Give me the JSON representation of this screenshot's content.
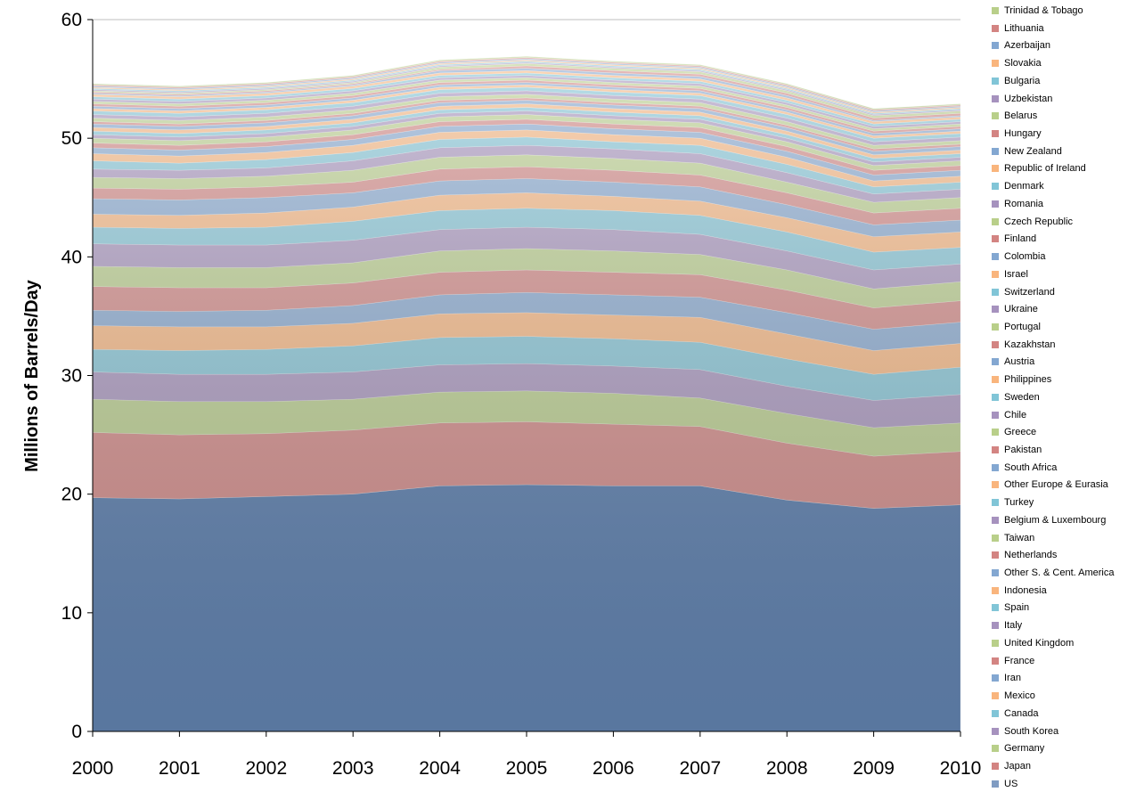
{
  "chart_data": {
    "type": "area",
    "stacked": true,
    "title": "",
    "xlabel": "",
    "ylabel": "Millions of Barrels/Day",
    "ylim": [
      0,
      60
    ],
    "yticks": [
      0,
      10,
      20,
      30,
      40,
      50,
      60
    ],
    "x": [
      "2000",
      "2001",
      "2002",
      "2003",
      "2004",
      "2005",
      "2006",
      "2007",
      "2008",
      "2009",
      "2010"
    ],
    "grid": false,
    "legend_position": "right",
    "series": [
      {
        "name": "US",
        "color": "#4a72a8",
        "values": [
          19.7,
          19.6,
          19.8,
          20.0,
          20.7,
          20.8,
          20.7,
          20.7,
          19.5,
          18.8,
          19.1
        ]
      },
      {
        "name": "Japan",
        "color": "#c0504d",
        "values": [
          5.5,
          5.4,
          5.3,
          5.4,
          5.3,
          5.3,
          5.2,
          5.0,
          4.8,
          4.4,
          4.5
        ]
      },
      {
        "name": "Germany",
        "color": "#9bbb59",
        "values": [
          2.8,
          2.8,
          2.7,
          2.6,
          2.6,
          2.6,
          2.6,
          2.4,
          2.5,
          2.4,
          2.4
        ]
      },
      {
        "name": "South Korea",
        "color": "#8064a2",
        "values": [
          2.3,
          2.3,
          2.3,
          2.3,
          2.3,
          2.3,
          2.3,
          2.4,
          2.3,
          2.3,
          2.4
        ]
      },
      {
        "name": "Canada",
        "color": "#4bacc6",
        "values": [
          1.9,
          2.0,
          2.1,
          2.2,
          2.3,
          2.3,
          2.3,
          2.3,
          2.3,
          2.2,
          2.3
        ]
      },
      {
        "name": "Mexico",
        "color": "#f79646",
        "values": [
          2.0,
          2.0,
          1.9,
          1.9,
          2.0,
          2.0,
          2.0,
          2.1,
          2.1,
          2.0,
          2.0
        ]
      },
      {
        "name": "Iran",
        "color": "#4f81bd",
        "values": [
          1.3,
          1.3,
          1.4,
          1.5,
          1.6,
          1.7,
          1.7,
          1.7,
          1.8,
          1.8,
          1.8
        ]
      },
      {
        "name": "France",
        "color": "#c0504d",
        "values": [
          2.0,
          2.0,
          1.9,
          1.9,
          1.9,
          1.9,
          1.9,
          1.9,
          1.9,
          1.8,
          1.8
        ]
      },
      {
        "name": "United Kingdom",
        "color": "#9bbb59",
        "values": [
          1.7,
          1.7,
          1.7,
          1.7,
          1.8,
          1.8,
          1.8,
          1.7,
          1.7,
          1.6,
          1.6
        ]
      },
      {
        "name": "Italy",
        "color": "#8064a2",
        "values": [
          1.9,
          1.9,
          1.9,
          1.9,
          1.8,
          1.8,
          1.8,
          1.7,
          1.6,
          1.6,
          1.5
        ]
      },
      {
        "name": "Spain",
        "color": "#4bacc6",
        "values": [
          1.4,
          1.4,
          1.5,
          1.6,
          1.6,
          1.6,
          1.6,
          1.6,
          1.6,
          1.5,
          1.4
        ]
      },
      {
        "name": "Indonesia",
        "color": "#f79646",
        "values": [
          1.1,
          1.1,
          1.2,
          1.2,
          1.3,
          1.3,
          1.2,
          1.2,
          1.2,
          1.3,
          1.3
        ]
      },
      {
        "name": "Other S. & Cent. America",
        "color": "#4f81bd",
        "values": [
          1.3,
          1.3,
          1.3,
          1.2,
          1.2,
          1.2,
          1.2,
          1.2,
          1.1,
          1.0,
          1.0
        ]
      },
      {
        "name": "Netherlands",
        "color": "#c0504d",
        "values": [
          0.9,
          0.9,
          0.9,
          0.9,
          1.0,
          1.0,
          1.0,
          1.0,
          1.0,
          1.0,
          1.0
        ]
      },
      {
        "name": "Taiwan",
        "color": "#9bbb59",
        "values": [
          0.9,
          0.9,
          0.9,
          1.0,
          1.0,
          1.0,
          1.0,
          1.0,
          0.9,
          0.9,
          0.9
        ]
      },
      {
        "name": "Belgium & Luxembourg",
        "color": "#8064a2",
        "values": [
          0.7,
          0.7,
          0.7,
          0.8,
          0.8,
          0.8,
          0.8,
          0.8,
          0.8,
          0.7,
          0.7
        ]
      },
      {
        "name": "Turkey",
        "color": "#4bacc6",
        "values": [
          0.7,
          0.6,
          0.7,
          0.7,
          0.7,
          0.7,
          0.6,
          0.7,
          0.7,
          0.6,
          0.6
        ]
      },
      {
        "name": "Other Europe & Eurasia",
        "color": "#f79646",
        "values": [
          0.6,
          0.6,
          0.6,
          0.6,
          0.6,
          0.6,
          0.6,
          0.6,
          0.6,
          0.5,
          0.5
        ]
      },
      {
        "name": "South Africa",
        "color": "#4f81bd",
        "values": [
          0.5,
          0.5,
          0.5,
          0.5,
          0.5,
          0.5,
          0.5,
          0.5,
          0.5,
          0.5,
          0.5
        ]
      },
      {
        "name": "Pakistan",
        "color": "#c0504d",
        "values": [
          0.4,
          0.4,
          0.4,
          0.4,
          0.4,
          0.4,
          0.4,
          0.4,
          0.4,
          0.4,
          0.4
        ]
      },
      {
        "name": "Greece",
        "color": "#9bbb59",
        "values": [
          0.4,
          0.4,
          0.4,
          0.4,
          0.4,
          0.4,
          0.4,
          0.4,
          0.4,
          0.4,
          0.4
        ]
      },
      {
        "name": "Chile",
        "color": "#8064a2",
        "values": [
          0.3,
          0.3,
          0.3,
          0.3,
          0.3,
          0.3,
          0.3,
          0.3,
          0.3,
          0.3,
          0.3
        ]
      },
      {
        "name": "Sweden",
        "color": "#4bacc6",
        "values": [
          0.3,
          0.3,
          0.3,
          0.3,
          0.3,
          0.3,
          0.3,
          0.3,
          0.3,
          0.3,
          0.3
        ]
      },
      {
        "name": "Philippines",
        "color": "#f79646",
        "values": [
          0.3,
          0.3,
          0.3,
          0.3,
          0.3,
          0.3,
          0.3,
          0.3,
          0.3,
          0.3,
          0.3
        ]
      },
      {
        "name": "Austria",
        "color": "#4f81bd",
        "values": [
          0.3,
          0.3,
          0.3,
          0.3,
          0.3,
          0.3,
          0.3,
          0.3,
          0.3,
          0.3,
          0.3
        ]
      },
      {
        "name": "Kazakhstan",
        "color": "#c0504d",
        "values": [
          0.2,
          0.2,
          0.2,
          0.2,
          0.2,
          0.2,
          0.2,
          0.2,
          0.2,
          0.2,
          0.2
        ]
      },
      {
        "name": "Portugal",
        "color": "#9bbb59",
        "values": [
          0.3,
          0.3,
          0.3,
          0.3,
          0.3,
          0.3,
          0.3,
          0.3,
          0.3,
          0.3,
          0.3
        ]
      },
      {
        "name": "Ukraine",
        "color": "#8064a2",
        "values": [
          0.3,
          0.3,
          0.3,
          0.3,
          0.3,
          0.3,
          0.3,
          0.3,
          0.3,
          0.3,
          0.3
        ]
      },
      {
        "name": "Switzerland",
        "color": "#4bacc6",
        "values": [
          0.3,
          0.3,
          0.3,
          0.3,
          0.3,
          0.3,
          0.3,
          0.3,
          0.3,
          0.3,
          0.3
        ]
      },
      {
        "name": "Israel",
        "color": "#f79646",
        "values": [
          0.2,
          0.2,
          0.2,
          0.2,
          0.2,
          0.2,
          0.2,
          0.2,
          0.2,
          0.2,
          0.2
        ]
      },
      {
        "name": "Colombia",
        "color": "#4f81bd",
        "values": [
          0.2,
          0.2,
          0.2,
          0.2,
          0.2,
          0.2,
          0.2,
          0.2,
          0.2,
          0.2,
          0.2
        ]
      },
      {
        "name": "Finland",
        "color": "#c0504d",
        "values": [
          0.2,
          0.2,
          0.2,
          0.2,
          0.2,
          0.2,
          0.2,
          0.2,
          0.2,
          0.2,
          0.2
        ]
      },
      {
        "name": "Czech Republic",
        "color": "#9bbb59",
        "values": [
          0.2,
          0.2,
          0.2,
          0.2,
          0.2,
          0.2,
          0.2,
          0.2,
          0.2,
          0.2,
          0.2
        ]
      },
      {
        "name": "Romania",
        "color": "#8064a2",
        "values": [
          0.2,
          0.2,
          0.2,
          0.2,
          0.2,
          0.2,
          0.2,
          0.2,
          0.2,
          0.2,
          0.2
        ]
      },
      {
        "name": "Denmark",
        "color": "#4bacc6",
        "values": [
          0.2,
          0.2,
          0.2,
          0.2,
          0.2,
          0.2,
          0.2,
          0.2,
          0.2,
          0.2,
          0.2
        ]
      },
      {
        "name": "Republic of Ireland",
        "color": "#f79646",
        "values": [
          0.2,
          0.2,
          0.2,
          0.2,
          0.2,
          0.2,
          0.2,
          0.2,
          0.2,
          0.2,
          0.2
        ]
      },
      {
        "name": "New Zealand",
        "color": "#4f81bd",
        "values": [
          0.1,
          0.1,
          0.1,
          0.1,
          0.2,
          0.2,
          0.2,
          0.2,
          0.2,
          0.1,
          0.1
        ]
      },
      {
        "name": "Hungary",
        "color": "#c0504d",
        "values": [
          0.1,
          0.1,
          0.1,
          0.1,
          0.1,
          0.2,
          0.2,
          0.2,
          0.2,
          0.2,
          0.2
        ]
      },
      {
        "name": "Belarus",
        "color": "#9bbb59",
        "values": [
          0.1,
          0.1,
          0.1,
          0.1,
          0.2,
          0.2,
          0.2,
          0.2,
          0.2,
          0.2,
          0.2
        ]
      },
      {
        "name": "Uzbekistan",
        "color": "#8064a2",
        "values": [
          0.1,
          0.1,
          0.1,
          0.1,
          0.1,
          0.1,
          0.1,
          0.1,
          0.1,
          0.1,
          0.1
        ]
      },
      {
        "name": "Bulgaria",
        "color": "#4bacc6",
        "values": [
          0.1,
          0.1,
          0.1,
          0.1,
          0.1,
          0.1,
          0.1,
          0.1,
          0.1,
          0.1,
          0.1
        ]
      },
      {
        "name": "Slovakia",
        "color": "#f79646",
        "values": [
          0.1,
          0.1,
          0.1,
          0.1,
          0.1,
          0.1,
          0.1,
          0.1,
          0.1,
          0.1,
          0.1
        ]
      },
      {
        "name": "Azerbaijan",
        "color": "#4f81bd",
        "values": [
          0.1,
          0.1,
          0.1,
          0.1,
          0.1,
          0.1,
          0.1,
          0.1,
          0.1,
          0.1,
          0.1
        ]
      },
      {
        "name": "Lithuania",
        "color": "#c0504d",
        "values": [
          0.1,
          0.1,
          0.1,
          0.1,
          0.1,
          0.1,
          0.1,
          0.1,
          0.1,
          0.1,
          0.1
        ]
      },
      {
        "name": "Trinidad & Tobago",
        "color": "#9bbb59",
        "values": [
          0.1,
          0.1,
          0.1,
          0.1,
          0.1,
          0.1,
          0.1,
          0.1,
          0.1,
          0.1,
          0.1
        ]
      }
    ]
  }
}
